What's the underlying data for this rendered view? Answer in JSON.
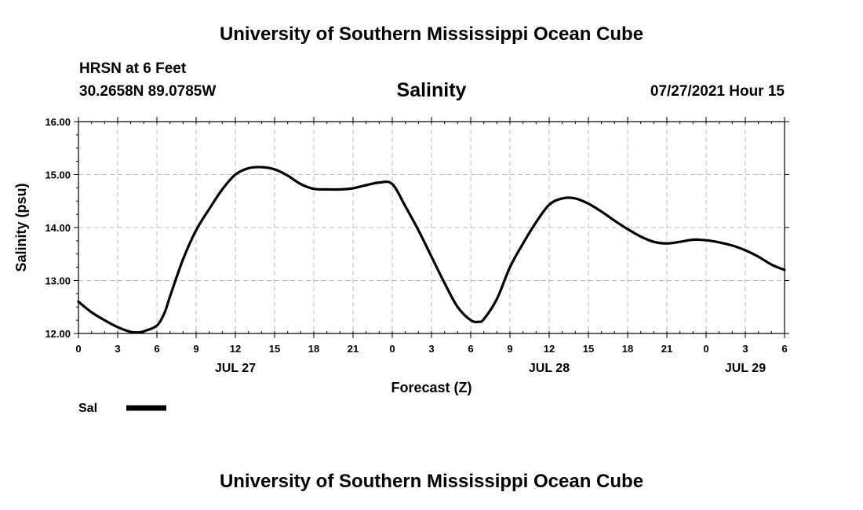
{
  "header": {
    "top_title": "University of Southern Mississippi Ocean Cube",
    "bottom_title": "University of Southern Mississippi Ocean Cube",
    "station_name": "HRSN at 6 Feet",
    "station_coords": "30.2658N  89.0785W",
    "forecast_time": "07/27/2021 Hour 15"
  },
  "chart_data": {
    "type": "line",
    "title": "Salinity",
    "xlabel": "Forecast (Z)",
    "ylabel": "Salinity (psu)",
    "xlim": [
      0,
      54
    ],
    "ylim": [
      12.0,
      16.0
    ],
    "grid": true,
    "legend_placement": "bottom-left",
    "y_ticks": [
      "12.00",
      "13.00",
      "14.00",
      "15.00",
      "16.00"
    ],
    "x_ticks": [
      "0",
      "3",
      "6",
      "9",
      "12",
      "15",
      "18",
      "21",
      "0",
      "3",
      "6",
      "9",
      "12",
      "15",
      "18",
      "21",
      "0",
      "3",
      "6"
    ],
    "date_labels": [
      {
        "label": "JUL 27",
        "hour": 12
      },
      {
        "label": "JUL 28",
        "hour": 36
      },
      {
        "label": "JUL 29",
        "hour": 51
      }
    ],
    "series": [
      {
        "name": "Sal",
        "color": "#000000",
        "x": [
          0,
          1,
          2,
          3,
          4,
          4.6,
          5,
          6,
          6.6,
          7,
          8,
          9,
          10,
          11,
          12,
          13,
          14,
          15,
          16,
          17,
          18,
          19,
          20,
          21,
          22,
          23,
          24,
          25,
          26,
          27,
          28,
          29,
          30,
          30.6,
          31,
          32,
          33,
          34,
          35,
          36,
          37,
          38,
          39,
          40,
          41,
          42,
          43,
          44,
          45,
          46,
          47,
          48,
          49,
          50,
          51,
          52,
          53,
          54
        ],
        "y": [
          12.6,
          12.4,
          12.25,
          12.12,
          12.03,
          12.02,
          12.04,
          12.15,
          12.4,
          12.7,
          13.4,
          13.95,
          14.35,
          14.72,
          15.0,
          15.12,
          15.14,
          15.1,
          14.98,
          14.82,
          14.73,
          14.72,
          14.72,
          14.74,
          14.8,
          14.85,
          14.82,
          14.4,
          13.95,
          13.45,
          12.95,
          12.5,
          12.25,
          12.22,
          12.27,
          12.65,
          13.25,
          13.7,
          14.1,
          14.43,
          14.55,
          14.55,
          14.45,
          14.3,
          14.13,
          13.97,
          13.83,
          13.73,
          13.7,
          13.73,
          13.77,
          13.76,
          13.72,
          13.66,
          13.57,
          13.45,
          13.3,
          13.2
        ]
      }
    ]
  }
}
